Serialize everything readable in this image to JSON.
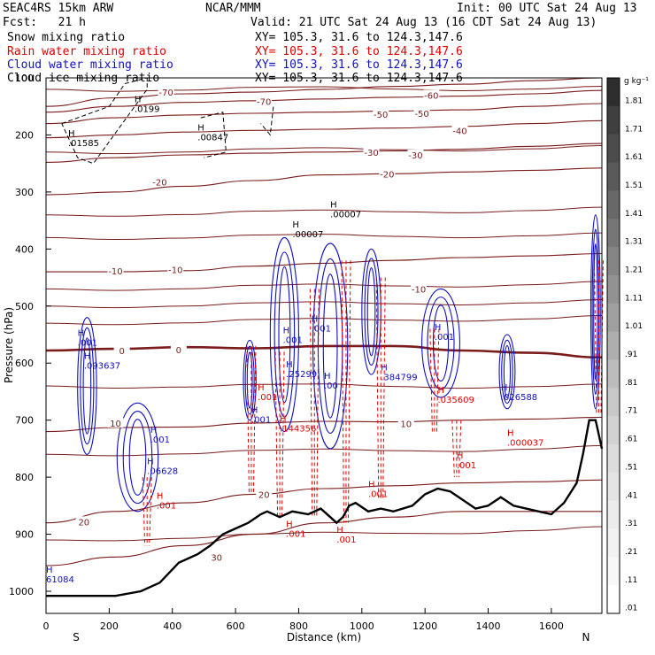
{
  "header": {
    "model": "SEAC4RS 15km ARW",
    "org": "NCAR/MMM",
    "init": "Init: 00 UTC Sat 24 Aug 13",
    "fcst": "Fcst:   21 h",
    "valid": "Valid: 21 UTC Sat 24 Aug 13 (16 CDT Sat 24 Aug 13)"
  },
  "fields": [
    {
      "name": "Snow mixing ratio",
      "xy": "XY= 105.3, 31.6 to 124.3,147.6",
      "color": "#000000"
    },
    {
      "name": "Rain water mixing ratio",
      "xy": "XY= 105.3, 31.6 to 124.3,147.6",
      "color": "#e00000"
    },
    {
      "name": "Cloud water mixing ratio",
      "xy": "XY= 105.3, 31.6 to 124.3,147.6",
      "color": "#1010c0"
    },
    {
      "name": "Cloud ice mixing ratio",
      "xy": "XY= 105.3, 31.6 to 124.3,147.6",
      "color": "#000000"
    }
  ],
  "colorbar": {
    "unit": "g kg⁻¹",
    "labels": [
      "1.81",
      "1.71",
      "1.61",
      "1.51",
      "1.41",
      "1.31",
      "1.21",
      "1.11",
      "1.01",
      ".91",
      ".81",
      ".71",
      ".61",
      ".51",
      ".41",
      ".31",
      ".21",
      ".11",
      ".01"
    ],
    "colors": [
      "#2e2e2e",
      "#3f3f3f",
      "#4c4c4c",
      "#5a5a5a",
      "#686868",
      "#767676",
      "#848484",
      "#929292",
      "#a0a0a0",
      "#aeaeae",
      "#bcbcbc",
      "#c8c8c8",
      "#d2d2d2",
      "#dcdcdc",
      "#e4e4e4",
      "#ececec",
      "#f2f2f2",
      "#f8f8f8",
      "#ffffff"
    ]
  },
  "chart_data": {
    "type": "contour-cross-section",
    "xlabel": "Distance (km)",
    "ylabel": "Pressure (hPa)",
    "xlim": [
      0,
      1760
    ],
    "ylim": [
      1000,
      100
    ],
    "x_ticks": [
      0,
      200,
      400,
      600,
      800,
      1000,
      1200,
      1400,
      1600
    ],
    "y_ticks": [
      100,
      200,
      300,
      400,
      500,
      600,
      700,
      800,
      900,
      1000
    ],
    "x_end_labels": {
      "left": "S",
      "right": "N"
    },
    "temperature_contours": [
      {
        "level": "-70",
        "color": "#7a1c1c",
        "p": [
          150,
          135,
          128,
          125,
          120,
          115,
          111,
          105,
          100
        ]
      },
      {
        "level": "-60",
        "color": "#7a1c1c",
        "p": [
          160,
          150,
          143,
          140,
          137,
          134,
          132,
          128,
          122
        ]
      },
      {
        "level": "-50",
        "color": "#7a1c1c",
        "p": [
          180,
          170,
          165,
          162,
          160,
          158,
          156,
          150,
          145
        ]
      },
      {
        "level": "-40",
        "color": "#7a1c1c",
        "p": [
          205,
          200,
          195,
          192,
          190,
          188,
          185,
          180,
          175
        ]
      },
      {
        "level": "-30",
        "color": "#7a1c1c",
        "p": [
          248,
          240,
          235,
          232,
          230,
          228,
          225,
          220,
          215
        ]
      },
      {
        "level": "-20",
        "color": "#7a1c1c",
        "p": [
          305,
          300,
          290,
          280,
          270,
          268,
          265,
          262,
          258
        ]
      },
      {
        "level": "-10",
        "color": "#7a1c1c",
        "p": [
          440,
          440,
          438,
          430,
          425,
          420,
          415,
          412,
          408
        ]
      },
      {
        "level": "0",
        "color": "#7a1c1c",
        "p": [
          578,
          575,
          572,
          574,
          570,
          570,
          578,
          582,
          590
        ]
      },
      {
        "level": "10",
        "color": "#7a1c1c",
        "p": [
          720,
          713,
          712,
          705,
          702,
          703,
          700,
          698,
          695
        ]
      },
      {
        "level": "20",
        "color": "#7a1c1c",
        "p": [
          880,
          860,
          845,
          830,
          820,
          815,
          810,
          808,
          805
        ]
      },
      {
        "level": "30",
        "color": "#7a1c1c",
        "p": [
          955,
          940,
          920,
          900,
          880,
          870,
          860,
          860,
          860
        ]
      }
    ],
    "temperature_x": [
      0,
      220,
      440,
      660,
      880,
      1100,
      1320,
      1540,
      1760
    ],
    "labels_on_contours": [
      {
        "text": "-70",
        "x": 380,
        "p": 125
      },
      {
        "text": "-70",
        "x": 690,
        "p": 141
      },
      {
        "text": "-60",
        "x": 1220,
        "p": 130
      },
      {
        "text": "-50",
        "x": 1060,
        "p": 164
      },
      {
        "text": "-50",
        "x": 1190,
        "p": 162
      },
      {
        "text": "-40",
        "x": 1310,
        "p": 192
      },
      {
        "text": "-30",
        "x": 1030,
        "p": 230
      },
      {
        "text": "-30",
        "x": 1170,
        "p": 235
      },
      {
        "text": "-20",
        "x": 360,
        "p": 282
      },
      {
        "text": "-20",
        "x": 1080,
        "p": 268
      },
      {
        "text": "-10",
        "x": 220,
        "p": 438
      },
      {
        "text": "-10",
        "x": 410,
        "p": 436
      },
      {
        "text": "-10",
        "x": 1180,
        "p": 470
      },
      {
        "text": "0",
        "x": 240,
        "p": 578
      },
      {
        "text": "0",
        "x": 420,
        "p": 576
      },
      {
        "text": "10",
        "x": 220,
        "p": 705
      },
      {
        "text": "10",
        "x": 1140,
        "p": 706
      },
      {
        "text": "20",
        "x": 120,
        "p": 878
      },
      {
        "text": "20",
        "x": 690,
        "p": 830
      },
      {
        "text": "30",
        "x": 540,
        "p": 940
      }
    ],
    "cloud_water_contours": [
      {
        "level": ".001",
        "x_center": 130,
        "p_top": 520,
        "p_bot": 760,
        "width": 60
      },
      {
        "level": ".001",
        "x_center": 290,
        "p_top": 670,
        "p_bot": 860,
        "width": 130
      },
      {
        "level": ".001",
        "x_center": 645,
        "p_top": 560,
        "p_bot": 700,
        "width": 40
      },
      {
        "level": ".001",
        "x_center": 755,
        "p_top": 380,
        "p_bot": 720,
        "width": 90
      },
      {
        "level": ".001",
        "x_center": 900,
        "p_top": 390,
        "p_bot": 750,
        "width": 110
      },
      {
        "level": ".001",
        "x_center": 1030,
        "p_top": 400,
        "p_bot": 620,
        "width": 60
      },
      {
        "level": ".001",
        "x_center": 1250,
        "p_top": 470,
        "p_bot": 660,
        "width": 120
      },
      {
        "level": ".001",
        "x_center": 1460,
        "p_top": 550,
        "p_bot": 680,
        "width": 50
      },
      {
        "level": ".001",
        "x_center": 1740,
        "p_top": 340,
        "p_bot": 680,
        "width": 30
      }
    ],
    "rain_water_contours": [
      {
        "level": ".001",
        "x_center": 320,
        "p_top": 800,
        "p_bot": 920
      },
      {
        "level": ".001",
        "x_center": 650,
        "p_top": 570,
        "p_bot": 830
      },
      {
        "level": ".001",
        "x_center": 740,
        "p_top": 580,
        "p_bot": 870
      },
      {
        "level": ".001",
        "x_center": 850,
        "p_top": 470,
        "p_bot": 870
      },
      {
        "level": ".001",
        "x_center": 950,
        "p_top": 420,
        "p_bot": 880
      },
      {
        "level": ".001",
        "x_center": 1060,
        "p_top": 450,
        "p_bot": 840
      },
      {
        "level": ".001",
        "x_center": 1230,
        "p_top": 540,
        "p_bot": 720
      },
      {
        "level": ".001",
        "x_center": 1300,
        "p_top": 700,
        "p_bot": 800
      },
      {
        "level": ".001",
        "x_center": 1750,
        "p_top": 420,
        "p_bot": 690
      }
    ],
    "snow_cloudice_contours": [
      {
        "x": [
          50,
          200,
          250,
          320,
          320,
          150,
          100,
          50
        ],
        "p": [
          180,
          150,
          110,
          100,
          120,
          250,
          240,
          180
        ]
      },
      {
        "x": [
          490,
          560,
          570,
          500
        ],
        "p": [
          170,
          160,
          230,
          240
        ]
      },
      {
        "x": [
          680,
          720,
          710,
          680
        ],
        "p": [
          140,
          150,
          200,
          180
        ]
      }
    ],
    "maxima": [
      {
        "text": ".0199",
        "x": 280,
        "p": 155,
        "color": "#000000"
      },
      {
        "text": ".01585",
        "x": 70,
        "p": 215,
        "color": "#000000"
      },
      {
        "text": ".00847",
        "x": 480,
        "p": 205,
        "color": "#000000"
      },
      {
        "text": ".00007",
        "x": 780,
        "p": 375,
        "color": "#000000"
      },
      {
        "text": ".00007",
        "x": 900,
        "p": 340,
        "color": "#000000"
      },
      {
        "text": ".001",
        "x": 100,
        "p": 565,
        "color": "#1010c0"
      },
      {
        "text": ".093637",
        "x": 120,
        "p": 605,
        "color": "#1010c0"
      },
      {
        "text": ".001",
        "x": 330,
        "p": 735,
        "color": "#1010c0"
      },
      {
        "text": ".06628",
        "x": 320,
        "p": 790,
        "color": "#1010c0"
      },
      {
        "text": ".001",
        "x": 350,
        "p": 850,
        "color": "#e00000"
      },
      {
        "text": ".001",
        "x": 670,
        "p": 660,
        "color": "#e00000"
      },
      {
        "text": ".001",
        "x": 650,
        "p": 700,
        "color": "#1010c0"
      },
      {
        "text": ".25299",
        "x": 760,
        "p": 620,
        "color": "#1010c0"
      },
      {
        "text": ".144356",
        "x": 740,
        "p": 715,
        "color": "#e00000"
      },
      {
        "text": ".001",
        "x": 750,
        "p": 560,
        "color": "#1010c0"
      },
      {
        "text": ".001",
        "x": 840,
        "p": 540,
        "color": "#1010c0"
      },
      {
        "text": ".00",
        "x": 880,
        "p": 640,
        "color": "#1010c0"
      },
      {
        "text": ".384799",
        "x": 1060,
        "p": 625,
        "color": "#1010c0"
      },
      {
        "text": ".001",
        "x": 760,
        "p": 900,
        "color": "#e00000"
      },
      {
        "text": ".001",
        "x": 920,
        "p": 910,
        "color": "#e00000"
      },
      {
        "text": ".001",
        "x": 1020,
        "p": 830,
        "color": "#e00000"
      },
      {
        "text": ".001",
        "x": 1230,
        "p": 555,
        "color": "#1010c0"
      },
      {
        "text": ".035609",
        "x": 1240,
        "p": 665,
        "color": "#e00000"
      },
      {
        "text": ".026588",
        "x": 1440,
        "p": 660,
        "color": "#1010c0"
      },
      {
        "text": ".000037",
        "x": 1460,
        "p": 740,
        "color": "#e00000"
      },
      {
        "text": ".001",
        "x": 1300,
        "p": 780,
        "color": "#e00000"
      },
      {
        "text": "61084",
        "x": 0,
        "p": 980,
        "color": "#1010c0"
      }
    ],
    "terrain": {
      "x": [
        0,
        140,
        220,
        300,
        360,
        420,
        480,
        520,
        560,
        600,
        640,
        680,
        700,
        740,
        780,
        830,
        870,
        900,
        920,
        940,
        960,
        980,
        1020,
        1060,
        1100,
        1160,
        1200,
        1240,
        1280,
        1320,
        1360,
        1400,
        1440,
        1480,
        1520,
        1560,
        1600,
        1640,
        1680,
        1700,
        1720,
        1740,
        1760
      ],
      "p": [
        1008,
        1008,
        1008,
        1000,
        985,
        950,
        935,
        920,
        900,
        890,
        880,
        865,
        860,
        870,
        860,
        865,
        855,
        870,
        880,
        870,
        850,
        845,
        860,
        855,
        860,
        850,
        830,
        820,
        825,
        840,
        855,
        850,
        835,
        850,
        855,
        860,
        865,
        845,
        810,
        760,
        700,
        700,
        750
      ]
    }
  }
}
